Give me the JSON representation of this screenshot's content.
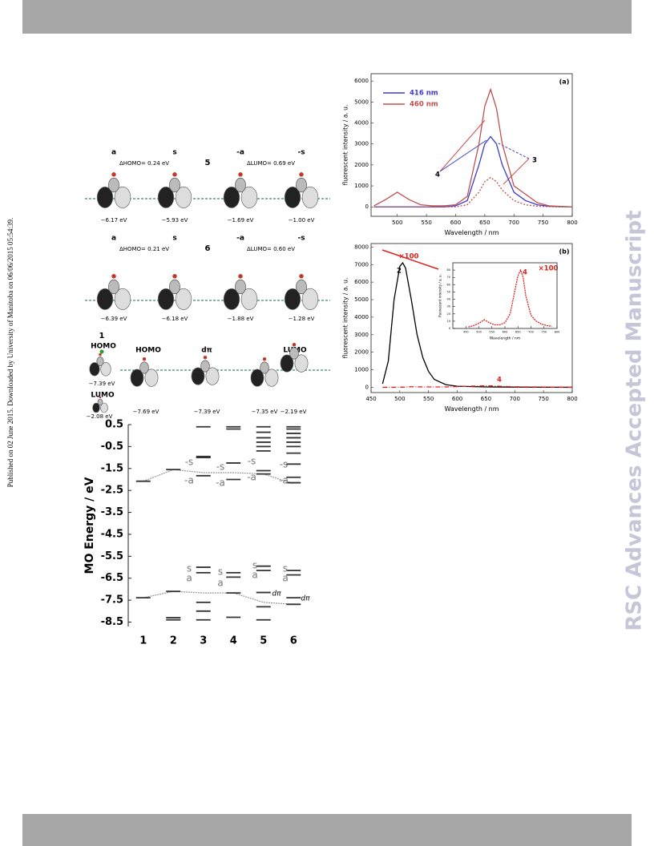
{
  "side_note": "Published on 02 June 2015. Downloaded by University of Manitoba on 06/06/2015 05:54:39.",
  "watermark": "RSC Advances Accepted Manuscript",
  "orbitals": {
    "row5": {
      "label": "5",
      "columns": [
        "a",
        "s",
        "-a",
        "-s"
      ],
      "delta_homo": "ΔHOMO= 0.24 eV",
      "delta_lumo": "ΔLUMO= 0.69 eV",
      "energies": [
        "−6.17 eV",
        "−5.93 eV",
        "−1.69 eV",
        "−1.00 eV"
      ]
    },
    "row6": {
      "label": "6",
      "columns": [
        "a",
        "s",
        "-a",
        "-s"
      ],
      "delta_homo": "ΔHOMO= 0.21 eV",
      "delta_lumo": "ΔLUMO= 0.60 eV",
      "energies": [
        "−6.39 eV",
        "−6.18 eV",
        "−1.88 eV",
        "−1.28 eV"
      ]
    },
    "row1": {
      "label": "1",
      "homo": "HOMO",
      "homo_energy": "−7.39 eV",
      "lumo": "LUMO",
      "lumo_energy": "−2.08 eV",
      "columns": [
        "HOMO",
        "dπ",
        "LUMO"
      ],
      "energies": [
        "−7.69 eV",
        "−7.39 eV",
        "−7.35 eV",
        "−2.19 eV"
      ]
    }
  },
  "chart_data": [
    {
      "type": "line",
      "panel_label": "(a)",
      "x_label": "Wavelength / nm",
      "y_label": "fluorescent intensity / a. u.",
      "x": [
        460,
        480,
        500,
        520,
        540,
        560,
        580,
        600,
        620,
        640,
        650,
        660,
        670,
        680,
        700,
        720,
        740,
        760,
        780,
        800
      ],
      "series": [
        {
          "name": "416 nm",
          "color": "#3d3dc8",
          "values": [
            0,
            0,
            0,
            0,
            0,
            0,
            0,
            50,
            300,
            2000,
            3000,
            3350,
            3000,
            2000,
            700,
            300,
            100,
            30,
            10,
            0
          ]
        },
        {
          "name": "460 nm",
          "color": "#c0504d",
          "values": [
            50,
            350,
            700,
            350,
            100,
            50,
            50,
            100,
            500,
            3000,
            4800,
            5600,
            4700,
            3000,
            1000,
            600,
            200,
            50,
            20,
            0
          ]
        },
        {
          "color": "#c0504d",
          "dash": "2,2",
          "values": [
            0,
            0,
            0,
            0,
            0,
            0,
            0,
            0,
            100,
            700,
            1200,
            1400,
            1200,
            800,
            300,
            100,
            30,
            10,
            0,
            0
          ]
        }
      ],
      "annotations": [
        {
          "text": "4",
          "color": "#000000"
        },
        {
          "text": "3",
          "color": "#000000"
        }
      ],
      "xlim": [
        455,
        800
      ],
      "xticks": [
        500,
        550,
        600,
        650,
        700,
        750,
        800
      ],
      "ylim": [
        -450,
        6350
      ],
      "yticks": [
        0,
        1000,
        2000,
        3000,
        4000,
        5000,
        6000
      ]
    },
    {
      "type": "line",
      "panel_label": "(b)",
      "x_label": "Wavelength / nm",
      "y_label": "fluorescent intensity / a. u.",
      "x": [
        470,
        480,
        490,
        500,
        505,
        510,
        520,
        530,
        540,
        550,
        560,
        580,
        600,
        650,
        700,
        800
      ],
      "series": [
        {
          "color": "#000000",
          "values": [
            200,
            1500,
            5000,
            6900,
            7100,
            6800,
            5000,
            3000,
            1700,
            900,
            450,
            150,
            60,
            20,
            10,
            0
          ]
        },
        {
          "color": "#e0201c",
          "dash": "6,2,1,2",
          "values": [
            0,
            0,
            0,
            5,
            5,
            10,
            30,
            30,
            20,
            20,
            20,
            20,
            40,
            90,
            30,
            0
          ]
        }
      ],
      "annotations": [
        {
          "text": "×100",
          "color": "#e0201c"
        },
        {
          "text": "2",
          "color": "#000000"
        },
        {
          "text": "4",
          "color": "#e0201c"
        },
        {
          "text": "×100",
          "color": "#e0201c"
        },
        {
          "text": "4",
          "color": "#e0201c"
        }
      ],
      "xlim": [
        450,
        800
      ],
      "xticks": [
        450,
        500,
        550,
        600,
        650,
        700,
        750,
        800
      ],
      "ylim": [
        -300,
        8200
      ],
      "yticks": [
        0,
        1000,
        2000,
        3000,
        4000,
        5000,
        6000,
        7000,
        8000
      ]
    },
    {
      "type": "line",
      "x_label": "Wavelength / nm",
      "y_label": "fluorescent intensity / a. u.",
      "x": [
        460,
        480,
        500,
        520,
        540,
        560,
        580,
        600,
        620,
        640,
        650,
        660,
        670,
        680,
        700,
        720,
        740,
        760,
        780
      ],
      "series": [
        {
          "color": "#e0201c",
          "dash": "2,1",
          "values": [
            2,
            4,
            7,
            12,
            8,
            5,
            5,
            8,
            20,
            55,
            72,
            80,
            70,
            45,
            18,
            10,
            6,
            4,
            3
          ]
        }
      ],
      "xlim": [
        400,
        800
      ],
      "xticks": [
        450,
        500,
        550,
        600,
        650,
        700,
        750,
        800
      ],
      "ylim": [
        0,
        90
      ],
      "yticks": [
        0,
        10,
        20,
        30,
        40,
        50,
        60,
        70,
        80
      ]
    },
    {
      "type": "levels",
      "y_label": "MO Energy / eV",
      "categories": [
        "1",
        "2",
        "3",
        "4",
        "5",
        "6"
      ],
      "levels": [
        [
          -2.08,
          -7.39
        ],
        [
          -1.55,
          -7.1,
          -8.3,
          -8.4
        ],
        [
          0.4,
          -0.95,
          -1.0,
          -1.83,
          -6.0,
          -6.25,
          -7.6,
          -8.0,
          -8.4
        ],
        [
          0.4,
          0.3,
          -1.25,
          -2.0,
          -6.25,
          -6.45,
          -7.17,
          -8.28
        ],
        [
          0.4,
          0.15,
          -0.1,
          -0.3,
          -0.5,
          -0.7,
          -1.6,
          -1.75,
          -5.95,
          -6.15,
          -7.15,
          -7.8,
          -8.4
        ],
        [
          0.4,
          0.3,
          0.1,
          -0.1,
          -0.3,
          -0.5,
          -0.8,
          -1.3,
          -1.9,
          -2.15,
          -6.15,
          -6.35,
          -7.39,
          -7.69
        ]
      ],
      "connectors": [
        {
          "values": [
            -2.08,
            -1.55,
            -1.69,
            -1.69,
            -1.75,
            -2.19
          ]
        },
        {
          "values": [
            -7.39,
            -7.1,
            -7.17,
            -7.17,
            -7.6,
            -7.69
          ]
        }
      ],
      "annotations": [
        {
          "text": "-s"
        },
        {
          "text": "-a"
        },
        {
          "text": "-s"
        },
        {
          "text": "-a"
        },
        {
          "text": "-s"
        },
        {
          "text": "-a"
        },
        {
          "text": "-s"
        },
        {
          "text": "-a"
        },
        {
          "text": "s"
        },
        {
          "text": "a"
        },
        {
          "text": "s"
        },
        {
          "text": "a"
        },
        {
          "text": "s"
        },
        {
          "text": "a"
        },
        {
          "text": "s"
        },
        {
          "text": "a"
        },
        {
          "text": "dπ"
        },
        {
          "text": "dπ"
        }
      ],
      "ylim": [
        -8.7,
        0.5
      ],
      "yticks": [
        0.5,
        -0.5,
        -1.5,
        -2.5,
        -3.5,
        -4.5,
        -5.5,
        -6.5,
        -7.5,
        -8.5
      ]
    }
  ]
}
